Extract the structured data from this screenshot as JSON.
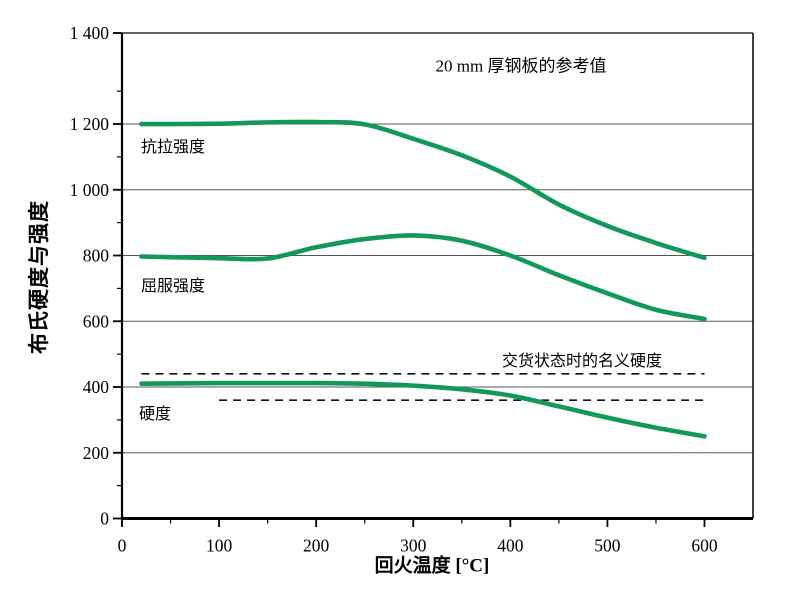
{
  "colors": {
    "curve_green": "#12995A",
    "grid": "#555555",
    "axis": "#000000",
    "dashed_line": "#111111"
  },
  "chart_data": {
    "type": "line",
    "annotation": "20 mm 厚钢板的参考值",
    "xlabel": "回火温度 [°C]",
    "ylabel": "布氏硬度与强度",
    "xlim": [
      0,
      650
    ],
    "ylim": [
      0,
      1400
    ],
    "grid": "horizontal-only",
    "legend_position": "inline-labels",
    "x_major_ticks": [
      0,
      100,
      200,
      300,
      400,
      500,
      600
    ],
    "x_major_tick_labels": [
      "0",
      "100",
      "200",
      "300",
      "400",
      "500",
      "600"
    ],
    "x_minor_ticks": [
      50,
      150,
      250,
      350,
      450,
      550
    ],
    "y_major_ticks": [
      0,
      200,
      400,
      600,
      800,
      1000,
      1200,
      1400
    ],
    "y_major_tick_labels": [
      "0",
      "200",
      "400",
      "600",
      "800",
      "1 000",
      "1 200",
      "1 400"
    ],
    "y_minor_ticks": [
      100,
      300,
      500,
      700,
      900,
      1100,
      1300
    ],
    "grid_values": [
      200,
      400,
      600,
      800,
      1000,
      1200
    ],
    "x": [
      20,
      50,
      100,
      150,
      200,
      250,
      300,
      350,
      400,
      450,
      500,
      550,
      600
    ],
    "series": [
      {
        "name": "抗拉强度",
        "values": [
          1200,
          1200,
          1201,
          1205,
          1206,
          1199,
          1155,
          1105,
          1040,
          955,
          890,
          838,
          793
        ]
      },
      {
        "name": "屈服强度",
        "values": [
          797,
          795,
          792,
          791,
          825,
          850,
          861,
          845,
          800,
          740,
          685,
          635,
          607
        ]
      },
      {
        "name": "硬度",
        "values": [
          410,
          411,
          412,
          412,
          412,
          410,
          404,
          393,
          374,
          341,
          307,
          276,
          250
        ]
      }
    ],
    "reference_lines": [
      {
        "label": "交货状态时的名义硬度",
        "value": 440,
        "x_start": 20,
        "x_end": 600,
        "style": "dashed"
      },
      {
        "label": "",
        "value": 360,
        "x_start": 100,
        "x_end": 600,
        "style": "dashed"
      }
    ]
  }
}
